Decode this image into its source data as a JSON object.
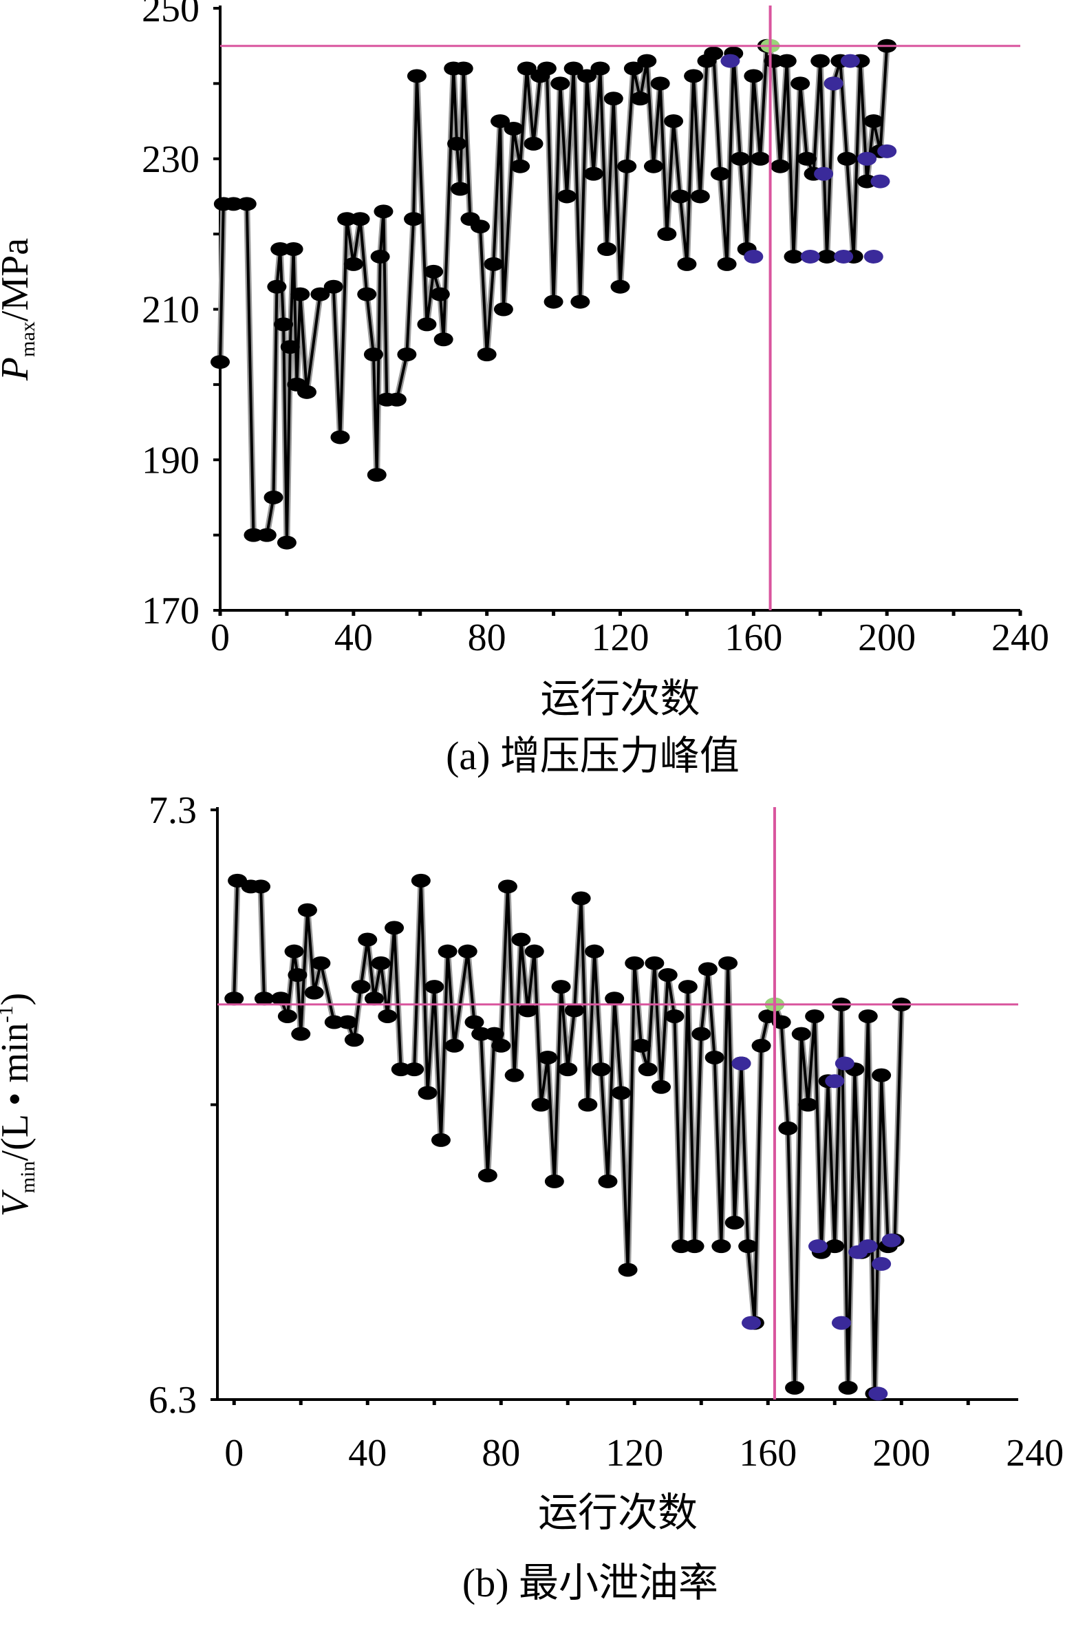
{
  "chart_data": [
    {
      "type": "line",
      "ylabel": {
        "symbol": "P",
        "subscript": "max",
        "unit": "/MPa"
      },
      "xlabel": "运行次数",
      "caption": "(a)  增压压力峰值",
      "xlim": [
        0,
        240
      ],
      "xticks": [
        0,
        40,
        80,
        120,
        160,
        200,
        240
      ],
      "xminor": [
        20,
        60,
        100,
        140,
        180,
        220
      ],
      "ylim": [
        170,
        250
      ],
      "yticks": [
        170,
        190,
        210,
        230,
        250
      ],
      "yminor": [
        180,
        200,
        220,
        240
      ],
      "reference_lines": {
        "x": 165,
        "y": 245,
        "color": "#d9559e"
      },
      "series": [
        {
          "color": "#000000",
          "x": [
            0,
            1,
            4,
            8,
            10,
            14,
            16,
            17,
            18,
            19,
            20,
            21,
            22,
            23,
            24,
            26,
            30,
            34,
            36,
            38,
            40,
            42,
            44,
            46,
            47,
            48,
            49,
            50,
            53,
            56,
            58,
            59,
            62,
            64,
            66,
            67,
            70,
            71,
            72,
            73,
            75,
            78,
            80,
            82,
            84,
            85,
            88,
            90,
            92,
            94,
            96,
            98,
            100,
            102,
            104,
            106,
            108,
            110,
            112,
            114,
            116,
            118,
            120,
            122,
            124,
            126,
            128,
            130,
            132,
            134,
            136,
            138,
            140,
            142,
            144,
            146,
            148,
            150,
            152,
            154,
            156,
            158,
            160,
            162,
            164,
            166,
            168,
            170,
            172,
            174,
            176,
            178,
            180,
            182,
            184,
            186,
            188,
            190,
            192,
            194,
            196,
            198,
            200
          ],
          "values": [
            203,
            224,
            224,
            224,
            180,
            180,
            185,
            213,
            218,
            208,
            179,
            205,
            218,
            200,
            212,
            199,
            212,
            213,
            193,
            222,
            216,
            222,
            212,
            204,
            188,
            217,
            223,
            198,
            198,
            204,
            222,
            241,
            208,
            215,
            212,
            206,
            242,
            232,
            226,
            242,
            222,
            221,
            204,
            216,
            235,
            210,
            234,
            229,
            242,
            232,
            241,
            242,
            211,
            240,
            225,
            242,
            211,
            241,
            228,
            242,
            218,
            238,
            213,
            229,
            242,
            238,
            243,
            229,
            240,
            220,
            235,
            225,
            216,
            241,
            225,
            243,
            244,
            228,
            216,
            244,
            230,
            218,
            241,
            230,
            245,
            243,
            229,
            243,
            217,
            240,
            230,
            228,
            243,
            217,
            240,
            243,
            230,
            217,
            243,
            227,
            235,
            231,
            245
          ]
        },
        {
          "color": "#3a2a9a",
          "x": [
            153,
            160,
            177,
            181,
            184,
            187,
            189,
            194,
            196,
            198,
            200
          ],
          "values": [
            243,
            217,
            217,
            228,
            240,
            217,
            243,
            230,
            217,
            227,
            231
          ]
        },
        {
          "color": "#9ad47a",
          "x": [
            165
          ],
          "values": [
            245
          ]
        }
      ]
    },
    {
      "type": "line",
      "ylabel": {
        "symbol": "V",
        "subscript": "min",
        "unit": "/(L • min",
        "superscript": "-1",
        "close": ")"
      },
      "xlabel": "运行次数",
      "caption": "(b)  最小泄油率",
      "xlim": [
        -5,
        235
      ],
      "xticks": [
        0,
        40,
        80,
        120,
        160,
        200,
        240
      ],
      "xminor": [
        20,
        60,
        100,
        140,
        180,
        220
      ],
      "ylim": [
        6.3,
        7.3
      ],
      "yticks": [
        6.3,
        7.3
      ],
      "yminor": [
        6.8
      ],
      "reference_lines": {
        "x": 162,
        "y": 6.97,
        "color": "#d9559e"
      },
      "series": [
        {
          "color": "#000000",
          "x": [
            0,
            1,
            5,
            8,
            9,
            14,
            16,
            18,
            19,
            20,
            22,
            24,
            26,
            30,
            34,
            36,
            38,
            40,
            42,
            44,
            46,
            48,
            50,
            54,
            56,
            58,
            60,
            62,
            64,
            66,
            70,
            72,
            74,
            76,
            78,
            80,
            82,
            84,
            86,
            88,
            90,
            92,
            94,
            96,
            98,
            100,
            102,
            104,
            106,
            108,
            110,
            112,
            114,
            116,
            118,
            120,
            122,
            124,
            126,
            128,
            130,
            132,
            134,
            136,
            138,
            140,
            142,
            144,
            146,
            148,
            150,
            152,
            154,
            156,
            158,
            160,
            162,
            164,
            166,
            168,
            170,
            172,
            174,
            176,
            178,
            180,
            182,
            184,
            186,
            188,
            190,
            192,
            194,
            196,
            198,
            200
          ],
          "values": [
            6.98,
            7.18,
            7.17,
            7.17,
            6.98,
            6.98,
            6.95,
            7.06,
            7.02,
            6.92,
            7.13,
            6.99,
            7.04,
            6.94,
            6.94,
            6.91,
            7.0,
            7.08,
            6.98,
            7.04,
            6.95,
            7.1,
            6.86,
            6.86,
            7.18,
            6.82,
            7.0,
            6.74,
            7.06,
            6.9,
            7.06,
            6.94,
            6.92,
            6.68,
            6.92,
            6.9,
            7.17,
            6.85,
            7.08,
            6.96,
            7.06,
            6.8,
            6.88,
            6.67,
            7.0,
            6.86,
            6.96,
            7.15,
            6.8,
            7.06,
            6.86,
            6.67,
            6.98,
            6.82,
            6.52,
            7.04,
            6.9,
            6.86,
            7.04,
            6.83,
            7.02,
            6.95,
            6.56,
            7.0,
            6.56,
            6.92,
            7.03,
            6.88,
            6.56,
            7.04,
            6.6,
            6.87,
            6.56,
            6.43,
            6.9,
            6.95,
            6.97,
            6.94,
            6.76,
            6.32,
            6.92,
            6.8,
            6.95,
            6.55,
            6.84,
            6.56,
            6.97,
            6.32,
            6.86,
            6.55,
            6.95,
            6.31,
            6.85,
            6.56,
            6.57,
            6.97
          ]
        },
        {
          "color": "#3a2a9a",
          "x": [
            152,
            155,
            175,
            180,
            182,
            183,
            187,
            190,
            193,
            194,
            197
          ],
          "values": [
            6.87,
            6.43,
            6.56,
            6.84,
            6.43,
            6.87,
            6.55,
            6.56,
            6.31,
            6.53,
            6.57
          ]
        },
        {
          "color": "#9ad47a",
          "x": [
            162
          ],
          "values": [
            6.97
          ]
        }
      ]
    }
  ]
}
